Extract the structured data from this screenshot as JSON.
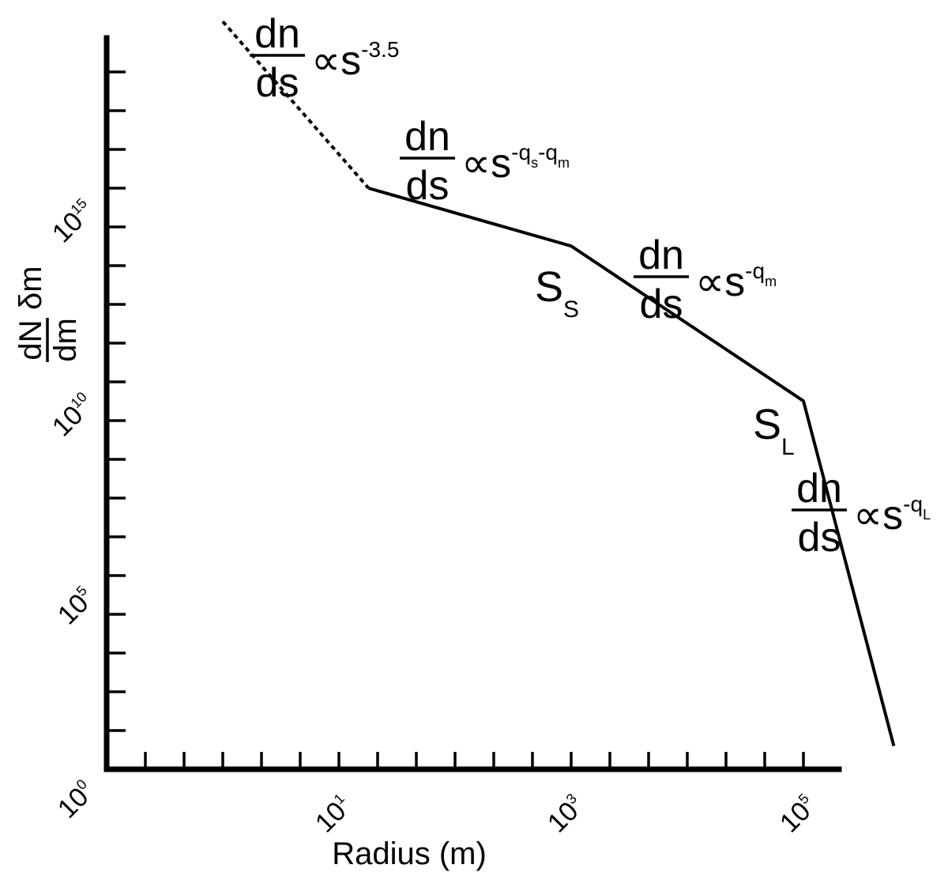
{
  "chart_data": {
    "type": "line",
    "title": "",
    "xlabel": "Radius (m)",
    "ylabel": {
      "numerator": "dN",
      "denominator": "dm",
      "factor": "δm"
    },
    "xscale": "log",
    "yscale": "log",
    "xlim": [
      0.1,
      1000000
    ],
    "ylim": [
      1,
      1e+19
    ],
    "grid": false,
    "x_tick_labels": [
      {
        "value": 10,
        "base": "10",
        "exp": "1"
      },
      {
        "value": 1000,
        "base": "10",
        "exp": "3"
      },
      {
        "value": 100000,
        "base": "10",
        "exp": "5"
      }
    ],
    "y_tick_labels": [
      {
        "value": 1,
        "base": "10",
        "exp": "0"
      },
      {
        "value": 100000,
        "base": "10",
        "exp": "5"
      },
      {
        "value": 10000000000,
        "base": "10",
        "exp": "10"
      },
      {
        "value": 1000000000000000,
        "base": "10",
        "exp": "15"
      }
    ],
    "series": [
      {
        "style": "dashed",
        "x": [
          1,
          18
        ],
        "y": [
          2e+19,
          1000000000000000.0
        ]
      },
      {
        "style": "solid",
        "x": [
          18,
          1000,
          100000,
          600000
        ],
        "y": [
          1000000000000000.0,
          32000000000000.0,
          3200000000.0,
          4.0
        ]
      }
    ],
    "points": [
      {
        "label": "S",
        "sub": "S",
        "x": 1000,
        "y": 32000000000000.0
      },
      {
        "label": "S",
        "sub": "L",
        "x": 100000,
        "y": 3200000000.0
      }
    ],
    "annotations": [
      {
        "num": "dn",
        "den": "ds",
        "rel": "∝s",
        "exp_parts": [
          {
            "text": "-3.5",
            "sub": ""
          }
        ]
      },
      {
        "num": "dn",
        "den": "ds",
        "rel": "∝s",
        "exp_parts": [
          {
            "text": "-q",
            "sub": "s"
          },
          {
            "text": "-q",
            "sub": "m"
          }
        ]
      },
      {
        "num": "dn",
        "den": "ds",
        "rel": "∝s",
        "exp_parts": [
          {
            "text": "-q",
            "sub": "m"
          }
        ]
      },
      {
        "num": "dn",
        "den": "ds",
        "rel": "∝s",
        "exp_parts": [
          {
            "text": "-q",
            "sub": "L"
          }
        ]
      }
    ]
  }
}
